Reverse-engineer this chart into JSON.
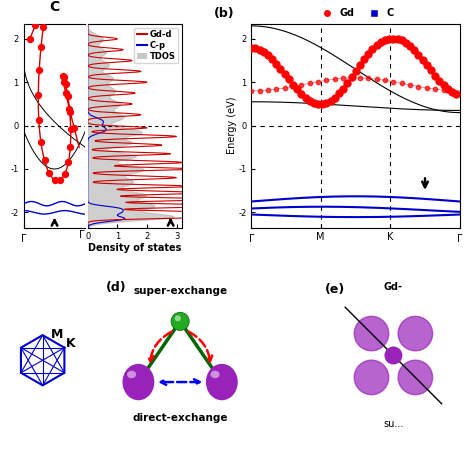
{
  "colors": {
    "Gd_line": "#CC0000",
    "Gd_dot": "#FF0000",
    "C_line": "#0000CC",
    "band_dark": "#880000",
    "black_band": "#000000",
    "TDOS_fill": "#BBBBBB",
    "bz_blue": "#0000CC",
    "Gd_atom": "#9922BB",
    "C_atom": "#22AA22",
    "super_ex": "#FF0000",
    "direct_ex": "#0000FF"
  },
  "energy_lim": [
    -2.3,
    2.3
  ],
  "dos_xlim": [
    0,
    3.2
  ],
  "background": "#FFFFFF"
}
